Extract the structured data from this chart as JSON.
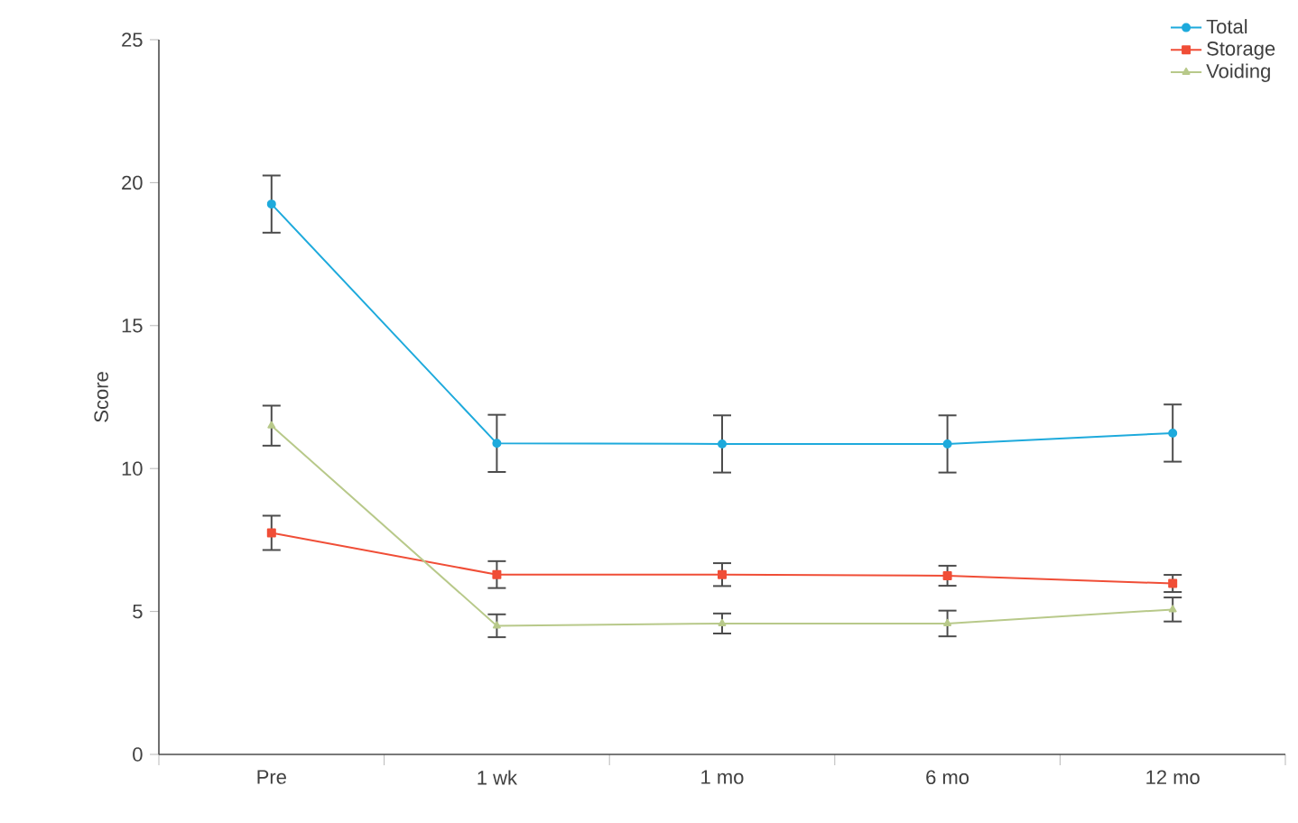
{
  "chart_data": {
    "type": "line",
    "ylabel": "Score",
    "categories": [
      "Pre",
      "1 wk",
      "1 mo",
      "6 mo",
      "12 mo"
    ],
    "series": [
      {
        "name": "Total",
        "color": "#1eaadc",
        "marker": "circle",
        "values": [
          19.25,
          10.88,
          10.86,
          10.86,
          11.24
        ],
        "errors": [
          1.0,
          1.0,
          1.0,
          1.0,
          1.0
        ]
      },
      {
        "name": "Storage",
        "color": "#f04e37",
        "marker": "square",
        "values": [
          7.75,
          6.29,
          6.29,
          6.25,
          5.98
        ],
        "errors": [
          0.6,
          0.47,
          0.4,
          0.35,
          0.3
        ]
      },
      {
        "name": "Voiding",
        "color": "#b8c98a",
        "marker": "triangle",
        "values": [
          11.5,
          4.5,
          4.58,
          4.58,
          5.07
        ],
        "errors": [
          0.7,
          0.4,
          0.35,
          0.45,
          0.42
        ]
      }
    ],
    "ylim": [
      0,
      25
    ],
    "yticks": [
      0,
      5,
      10,
      15,
      20,
      25
    ],
    "grid": false,
    "legend": "top right",
    "line_style": "solid"
  }
}
